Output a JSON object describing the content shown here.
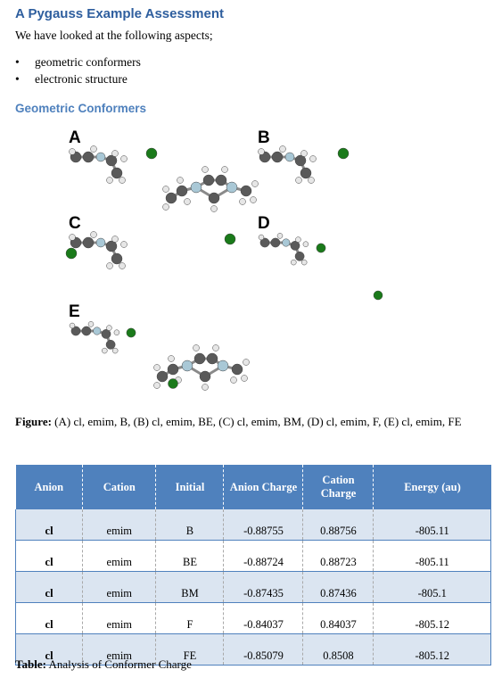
{
  "title": "A Pygauss Example Assessment",
  "intro": "We have looked at the following aspects;",
  "aspects": [
    "geometric conformers",
    "electronic structure"
  ],
  "section_heading": "Geometric Conformers",
  "figure": {
    "panel_labels": [
      "A",
      "B",
      "C",
      "D",
      "E"
    ],
    "caption_label": "Figure:",
    "caption_text": " (A) cl, emim, B, (B) cl, emim, BE, (C) cl, emim, BM, (D) cl, emim, F, (E) cl, emim, FE",
    "colors": {
      "carbon": "#5a5a5a",
      "hydrogen": "#e6e6e6",
      "nitrogen": "#a9c8d6",
      "chloride": "#1a7a1a"
    }
  },
  "table": {
    "headers": [
      "Anion",
      "Cation",
      "Initial",
      "Anion Charge",
      "Cation Charge",
      "Energy (au)"
    ],
    "rows": [
      [
        "cl",
        "emim",
        "B",
        "-0.88755",
        "0.88756",
        "-805.11"
      ],
      [
        "cl",
        "emim",
        "BE",
        "-0.88724",
        "0.88723",
        "-805.11"
      ],
      [
        "cl",
        "emim",
        "BM",
        "-0.87435",
        "0.87436",
        "-805.1"
      ],
      [
        "cl",
        "emim",
        "F",
        "-0.84037",
        "0.84037",
        "-805.12"
      ],
      [
        "cl",
        "emim",
        "FE",
        "-0.85079",
        "0.8508",
        "-805.12"
      ]
    ],
    "caption_label": "Table:",
    "caption_text": " Analysis of Conformer Charge",
    "header_color": "#4f81bd",
    "alt_row_color": "#dbe5f1"
  }
}
